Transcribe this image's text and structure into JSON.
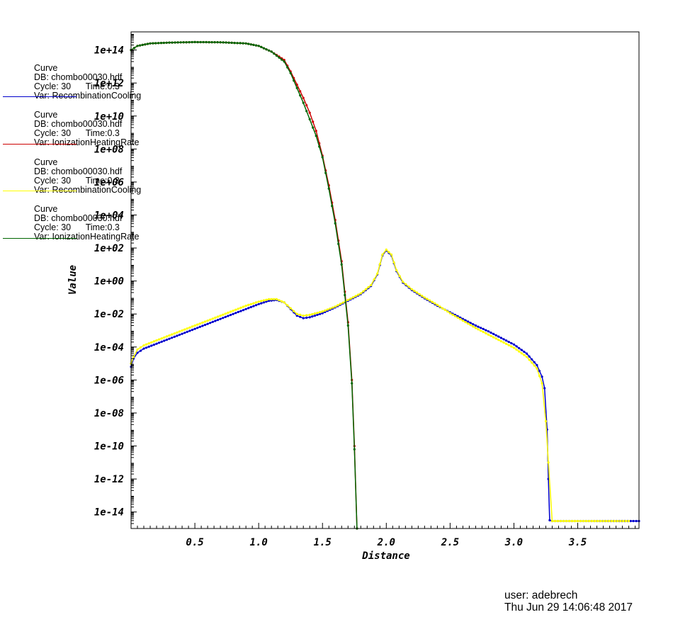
{
  "chart_data": {
    "type": "line",
    "xlabel": "Distance",
    "ylabel": "Value",
    "xlim": [
      0.0,
      3.98
    ],
    "ylog": true,
    "ylim_log10": [
      -15.0,
      15.1
    ],
    "x_ticks": [
      "0.5",
      "1.0",
      "1.5",
      "2.0",
      "2.5",
      "3.0",
      "3.5"
    ],
    "y_ticks": [
      "1e+14",
      "1e+12",
      "1e+10",
      "1e+08",
      "1e+06",
      "1e+04",
      "1e+02",
      "1e+00",
      "1e-02",
      "1e-04",
      "1e-06",
      "1e-08",
      "1e-10",
      "1e-12",
      "1e-14"
    ],
    "grid": false,
    "legend_placement": "left",
    "series": [
      {
        "name": "RecombinationCooling",
        "color": "#0000cc",
        "legend": [
          "Curve",
          "DB: chombo00030.hdf",
          "Cycle: 30      Time:0.3",
          "Var: RecombinationCooling"
        ],
        "points": [
          [
            0.0,
            -5.2
          ],
          [
            0.02,
            -4.7
          ],
          [
            0.05,
            -4.35
          ],
          [
            0.1,
            -4.1
          ],
          [
            0.2,
            -3.8
          ],
          [
            0.3,
            -3.5
          ],
          [
            0.4,
            -3.2
          ],
          [
            0.5,
            -2.9
          ],
          [
            0.6,
            -2.6
          ],
          [
            0.7,
            -2.3
          ],
          [
            0.8,
            -2.0
          ],
          [
            0.9,
            -1.7
          ],
          [
            1.0,
            -1.4
          ],
          [
            1.08,
            -1.2
          ],
          [
            1.14,
            -1.15
          ],
          [
            1.2,
            -1.3
          ],
          [
            1.25,
            -1.7
          ],
          [
            1.3,
            -2.1
          ],
          [
            1.35,
            -2.25
          ],
          [
            1.4,
            -2.2
          ],
          [
            1.5,
            -1.95
          ],
          [
            1.6,
            -1.6
          ],
          [
            1.7,
            -1.2
          ],
          [
            1.8,
            -0.8
          ],
          [
            1.88,
            -0.3
          ],
          [
            1.93,
            0.4
          ],
          [
            1.97,
            1.55
          ],
          [
            2.0,
            1.85
          ],
          [
            2.04,
            1.55
          ],
          [
            2.08,
            0.6
          ],
          [
            2.13,
            -0.1
          ],
          [
            2.2,
            -0.55
          ],
          [
            2.3,
            -1.05
          ],
          [
            2.4,
            -1.5
          ],
          [
            2.5,
            -1.9
          ],
          [
            2.6,
            -2.3
          ],
          [
            2.7,
            -2.7
          ],
          [
            2.8,
            -3.05
          ],
          [
            2.9,
            -3.45
          ],
          [
            3.0,
            -3.85
          ],
          [
            3.1,
            -4.4
          ],
          [
            3.18,
            -5.1
          ],
          [
            3.22,
            -5.8
          ],
          [
            3.24,
            -6.5
          ],
          [
            3.26,
            -9.0
          ],
          [
            3.27,
            -12.0
          ],
          [
            3.28,
            -14.5
          ],
          [
            3.3,
            -14.55
          ],
          [
            3.5,
            -14.55
          ],
          [
            3.98,
            -14.55
          ]
        ]
      },
      {
        "name": "IonizationHeatingRate",
        "color": "#cc0000",
        "legend": [
          "Curve",
          "DB: chombo00030.hdf",
          "Cycle: 30      Time:0.3",
          "Var: IonizationHeatingRate"
        ],
        "points": [
          [
            0.0,
            14.0
          ],
          [
            0.05,
            14.25
          ],
          [
            0.15,
            14.4
          ],
          [
            0.3,
            14.45
          ],
          [
            0.5,
            14.48
          ],
          [
            0.7,
            14.47
          ],
          [
            0.9,
            14.4
          ],
          [
            1.0,
            14.25
          ],
          [
            1.1,
            13.9
          ],
          [
            1.2,
            13.4
          ],
          [
            1.25,
            12.7
          ],
          [
            1.3,
            11.9
          ],
          [
            1.35,
            11.1
          ],
          [
            1.4,
            10.2
          ],
          [
            1.45,
            9.1
          ],
          [
            1.5,
            7.6
          ],
          [
            1.55,
            5.8
          ],
          [
            1.6,
            3.7
          ],
          [
            1.65,
            1.2
          ],
          [
            1.7,
            -2.5
          ],
          [
            1.73,
            -6.0
          ],
          [
            1.75,
            -10.0
          ],
          [
            1.77,
            -15.0
          ]
        ]
      },
      {
        "name": "RecombinationCooling",
        "color": "#ffff00",
        "legend": [
          "Curve",
          "DB: chombo00030.hdf",
          "Cycle: 30      Time:0.3",
          "Var: RecombinationCooling"
        ],
        "points": [
          [
            0.0,
            -5.0
          ],
          [
            0.02,
            -4.6
          ],
          [
            0.05,
            -4.15
          ],
          [
            0.1,
            -3.9
          ],
          [
            0.2,
            -3.6
          ],
          [
            0.3,
            -3.3
          ],
          [
            0.4,
            -3.0
          ],
          [
            0.5,
            -2.7
          ],
          [
            0.6,
            -2.4
          ],
          [
            0.7,
            -2.1
          ],
          [
            0.8,
            -1.8
          ],
          [
            0.9,
            -1.5
          ],
          [
            1.0,
            -1.25
          ],
          [
            1.08,
            -1.1
          ],
          [
            1.14,
            -1.1
          ],
          [
            1.2,
            -1.3
          ],
          [
            1.25,
            -1.65
          ],
          [
            1.3,
            -2.0
          ],
          [
            1.35,
            -2.1
          ],
          [
            1.4,
            -2.05
          ],
          [
            1.5,
            -1.85
          ],
          [
            1.6,
            -1.55
          ],
          [
            1.7,
            -1.15
          ],
          [
            1.8,
            -0.75
          ],
          [
            1.88,
            -0.25
          ],
          [
            1.93,
            0.45
          ],
          [
            1.97,
            1.6
          ],
          [
            2.0,
            1.9
          ],
          [
            2.04,
            1.6
          ],
          [
            2.08,
            0.65
          ],
          [
            2.13,
            -0.05
          ],
          [
            2.2,
            -0.5
          ],
          [
            2.3,
            -1.0
          ],
          [
            2.4,
            -1.45
          ],
          [
            2.5,
            -1.95
          ],
          [
            2.6,
            -2.4
          ],
          [
            2.7,
            -2.85
          ],
          [
            2.8,
            -3.25
          ],
          [
            2.9,
            -3.65
          ],
          [
            3.0,
            -4.05
          ],
          [
            3.1,
            -4.6
          ],
          [
            3.18,
            -5.3
          ],
          [
            3.22,
            -6.2
          ],
          [
            3.25,
            -8.5
          ],
          [
            3.27,
            -11.0
          ],
          [
            3.3,
            -14.55
          ],
          [
            3.5,
            -14.55
          ],
          [
            3.9,
            -14.55
          ]
        ]
      },
      {
        "name": "IonizationHeatingRate",
        "color": "#006600",
        "legend": [
          "Curve",
          "DB: chombo00030.hdf",
          "Cycle: 30      Time:0.3",
          "Var: IonizationHeatingRate"
        ],
        "points": [
          [
            0.0,
            14.0
          ],
          [
            0.05,
            14.25
          ],
          [
            0.15,
            14.4
          ],
          [
            0.3,
            14.45
          ],
          [
            0.5,
            14.48
          ],
          [
            0.7,
            14.47
          ],
          [
            0.9,
            14.4
          ],
          [
            1.0,
            14.25
          ],
          [
            1.1,
            13.9
          ],
          [
            1.2,
            13.3
          ],
          [
            1.25,
            12.6
          ],
          [
            1.3,
            11.7
          ],
          [
            1.35,
            10.8
          ],
          [
            1.4,
            9.8
          ],
          [
            1.45,
            8.8
          ],
          [
            1.5,
            7.5
          ],
          [
            1.55,
            5.6
          ],
          [
            1.6,
            3.5
          ],
          [
            1.65,
            1.0
          ],
          [
            1.7,
            -2.7
          ],
          [
            1.73,
            -6.2
          ],
          [
            1.75,
            -10.2
          ],
          [
            1.77,
            -15.0
          ]
        ]
      }
    ]
  },
  "footer": {
    "user": "user: adebrech",
    "timestamp": "Thu Jun 29 14:06:48 2017"
  }
}
